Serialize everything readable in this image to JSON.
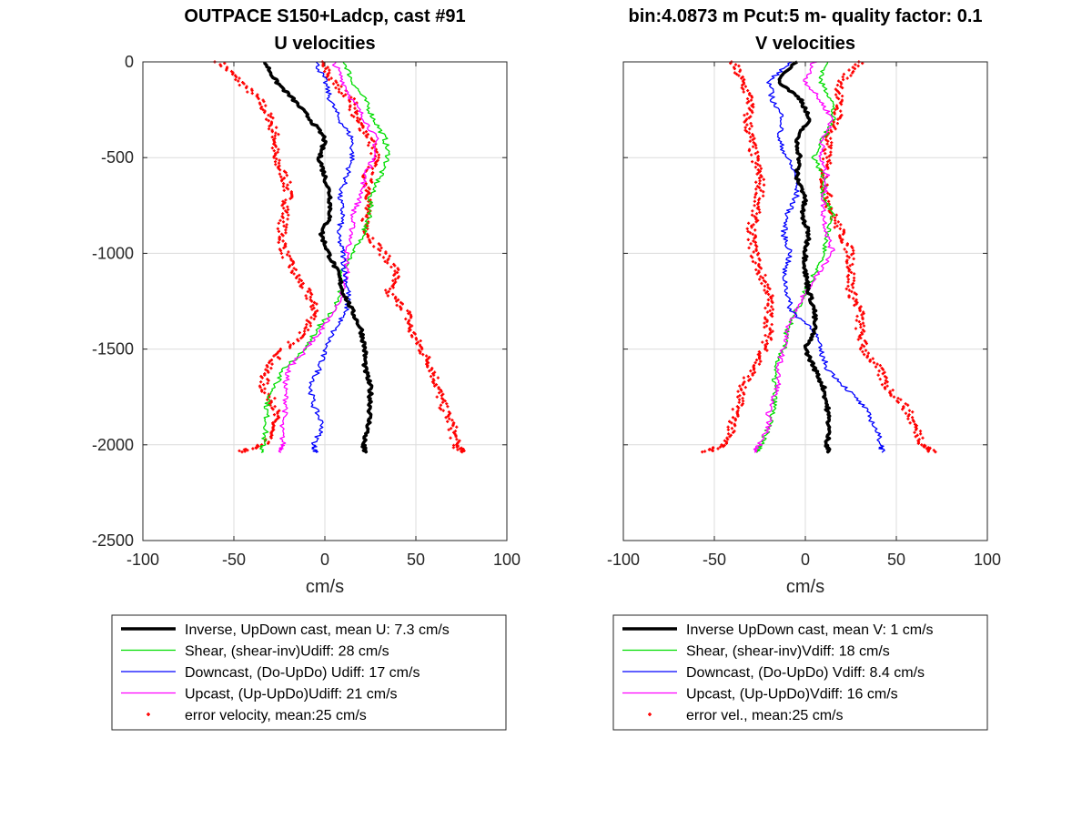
{
  "chart_data": [
    {
      "type": "line",
      "title": "OUTPACE S150+Ladcp, cast #91",
      "subtitle": "U velocities",
      "xlabel": "cm/s",
      "ylabel": "",
      "xlim": [
        -100,
        100
      ],
      "ylim": [
        -2500,
        0
      ],
      "xticks": [
        "-100",
        "-50",
        "0",
        "50",
        "100"
      ],
      "yticks": [
        "0",
        "-500",
        "-1000",
        "-1500",
        "-2000",
        "-2500"
      ],
      "grid": true,
      "legend_position": "below",
      "depth": [
        0,
        -100,
        -200,
        -300,
        -400,
        -500,
        -600,
        -700,
        -800,
        -900,
        -1000,
        -1100,
        -1200,
        -1300,
        -1400,
        -1500,
        -1600,
        -1700,
        -1800,
        -1900,
        -2000,
        -2040
      ],
      "series": [
        {
          "name": "Inverse, UpDown cast, mean U:  7.3 cm/s",
          "color": "#000000",
          "width": 3.5,
          "style": "line",
          "values": [
            -33,
            -27,
            -17,
            -8,
            0,
            -3,
            0,
            3,
            3,
            -2,
            2,
            7,
            10,
            15,
            20,
            22,
            22,
            25,
            25,
            24,
            21,
            22
          ]
        },
        {
          "name": "Shear, (shear-inv)Udiff:  28 cm/s",
          "color": "#00dd00",
          "width": 1.3,
          "style": "line",
          "values": [
            11,
            15,
            22,
            27,
            33,
            35,
            30,
            25,
            25,
            21,
            16,
            9,
            8,
            5,
            -5,
            -10,
            -22,
            -28,
            -32,
            -32,
            -34,
            -35
          ]
        },
        {
          "name": "Downcast, (Do-UpDo) Udiff:  17 cm/s",
          "color": "#0000ff",
          "width": 1.3,
          "style": "line",
          "values": [
            -5,
            0,
            3,
            8,
            15,
            15,
            12,
            8,
            10,
            7,
            10,
            11,
            13,
            12,
            5,
            0,
            -3,
            -8,
            -6,
            -1,
            -6,
            -5
          ]
        },
        {
          "name": "Upcast, (Up-UpDo)Udiff:  21 cm/s",
          "color": "#ff00ff",
          "width": 1.3,
          "style": "line",
          "values": [
            5,
            10,
            15,
            22,
            28,
            27,
            22,
            20,
            15,
            15,
            12,
            12,
            10,
            5,
            -2,
            -10,
            -20,
            -22,
            -21,
            -24,
            -23,
            -24
          ]
        },
        {
          "name": "error velocity, mean:25 cm/s",
          "color": "#ff0000",
          "width": 1.8,
          "style": "dots",
          "values": [
            -58,
            -47,
            -36,
            -30,
            -27,
            -28,
            -22,
            -20,
            -22,
            -24,
            -22,
            -17,
            -10,
            -5,
            -10,
            -22,
            -32,
            -34,
            -27,
            -28,
            -34,
            -48
          ]
        },
        {
          "name": "",
          "color": "#ff0000",
          "width": 1.8,
          "style": "dots",
          "values": [
            -2,
            4,
            15,
            17,
            25,
            28,
            23,
            25,
            22,
            24,
            32,
            40,
            34,
            45,
            47,
            53,
            59,
            62,
            65,
            70,
            72,
            75
          ]
        }
      ]
    },
    {
      "type": "line",
      "title": "bin:4.0873 m  Pcut:5 m- quality factor:  0.1",
      "subtitle": "V velocities",
      "xlabel": "cm/s",
      "ylabel": "",
      "xlim": [
        -100,
        100
      ],
      "ylim": [
        -2500,
        0
      ],
      "xticks": [
        "-100",
        "-50",
        "0",
        "50",
        "100"
      ],
      "yticks": [],
      "grid": true,
      "legend_position": "below",
      "depth": [
        0,
        -100,
        -200,
        -300,
        -400,
        -500,
        -600,
        -700,
        -800,
        -900,
        -1000,
        -1100,
        -1200,
        -1300,
        -1400,
        -1500,
        -1600,
        -1700,
        -1800,
        -1900,
        -2000,
        -2040
      ],
      "series": [
        {
          "name": "Inverse UpDown cast, mean V:  1 cm/s",
          "color": "#000000",
          "width": 3.5,
          "style": "line",
          "values": [
            -5,
            -15,
            -2,
            2,
            -5,
            -3,
            -5,
            0,
            -2,
            2,
            0,
            0,
            2,
            5,
            5,
            0,
            5,
            10,
            12,
            13,
            12,
            13
          ]
        },
        {
          "name": "Shear, (shear-inv)Vdiff:  18 cm/s",
          "color": "#00dd00",
          "width": 1.3,
          "style": "line",
          "values": [
            12,
            8,
            15,
            15,
            10,
            5,
            10,
            10,
            15,
            12,
            10,
            5,
            0,
            -5,
            -10,
            -12,
            -17,
            -17,
            -17,
            -20,
            -24,
            -27
          ]
        },
        {
          "name": "Downcast, (Do-UpDo) Vdiff:  8.4 cm/s",
          "color": "#0000ff",
          "width": 1.3,
          "style": "line",
          "values": [
            -8,
            -20,
            -18,
            -12,
            -15,
            -10,
            -5,
            -5,
            -10,
            -12,
            -8,
            -12,
            -10,
            -8,
            5,
            8,
            12,
            22,
            32,
            38,
            42,
            42
          ]
        },
        {
          "name": "Upcast, (Up-UpDo)Vdiff:  16 cm/s",
          "color": "#ff00ff",
          "width": 1.3,
          "style": "line",
          "values": [
            5,
            0,
            8,
            15,
            10,
            8,
            12,
            10,
            10,
            12,
            15,
            8,
            0,
            -5,
            -10,
            -12,
            -15,
            -15,
            -20,
            -20,
            -25,
            -28
          ]
        },
        {
          "name": "error vel., mean:25 cm/s",
          "color": "#ff0000",
          "width": 1.8,
          "style": "dots",
          "values": [
            -40,
            -35,
            -30,
            -32,
            -30,
            -28,
            -25,
            -25,
            -28,
            -30,
            -28,
            -25,
            -20,
            -20,
            -20,
            -22,
            -28,
            -35,
            -37,
            -40,
            -45,
            -55
          ]
        },
        {
          "name": "",
          "color": "#ff0000",
          "width": 1.8,
          "style": "dots",
          "values": [
            30,
            20,
            18,
            18,
            12,
            12,
            10,
            12,
            15,
            20,
            25,
            25,
            25,
            30,
            30,
            32,
            40,
            45,
            55,
            60,
            65,
            70
          ]
        }
      ]
    }
  ]
}
